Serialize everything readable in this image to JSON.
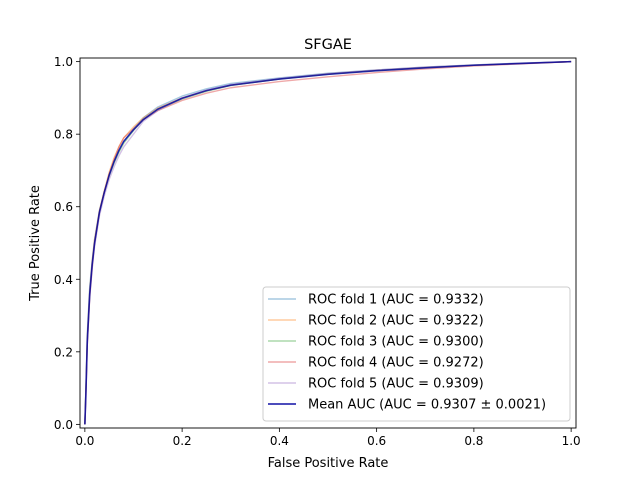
{
  "chart_data": {
    "type": "line",
    "title": "SFGAE",
    "xlabel": "False Positive Rate",
    "ylabel": "True Positive Rate",
    "xlim": [
      -0.01,
      1.01
    ],
    "ylim": [
      -0.01,
      1.01
    ],
    "xticks": [
      "0.0",
      "0.2",
      "0.4",
      "0.6",
      "0.8",
      "1.0"
    ],
    "yticks": [
      "0.0",
      "0.2",
      "0.4",
      "0.6",
      "0.8",
      "1.0"
    ],
    "grid": false,
    "legend_position": "lower-right",
    "series": [
      {
        "name": "ROC fold 1 (AUC = 0.9332)",
        "color": "#1f77b4",
        "opacity": 0.4,
        "x": [
          0,
          0.002,
          0.005,
          0.01,
          0.015,
          0.02,
          0.03,
          0.04,
          0.05,
          0.06,
          0.07,
          0.08,
          0.1,
          0.12,
          0.15,
          0.2,
          0.25,
          0.3,
          0.4,
          0.5,
          0.6,
          0.7,
          0.8,
          0.9,
          1.0
        ],
        "y": [
          0,
          0.1,
          0.25,
          0.38,
          0.45,
          0.51,
          0.59,
          0.64,
          0.69,
          0.725,
          0.755,
          0.78,
          0.815,
          0.845,
          0.875,
          0.905,
          0.925,
          0.94,
          0.955,
          0.968,
          0.977,
          0.985,
          0.991,
          0.996,
          1.0
        ]
      },
      {
        "name": "ROC fold 2 (AUC = 0.9322)",
        "color": "#ff7f0e",
        "opacity": 0.4,
        "x": [
          0,
          0.002,
          0.005,
          0.01,
          0.015,
          0.02,
          0.03,
          0.04,
          0.05,
          0.06,
          0.07,
          0.08,
          0.1,
          0.12,
          0.15,
          0.2,
          0.25,
          0.3,
          0.4,
          0.5,
          0.6,
          0.7,
          0.8,
          0.9,
          1.0
        ],
        "y": [
          0,
          0.09,
          0.24,
          0.37,
          0.45,
          0.51,
          0.59,
          0.645,
          0.695,
          0.735,
          0.765,
          0.79,
          0.82,
          0.845,
          0.872,
          0.9,
          0.92,
          0.935,
          0.952,
          0.966,
          0.976,
          0.984,
          0.99,
          0.995,
          1.0
        ]
      },
      {
        "name": "ROC fold 3 (AUC = 0.9300)",
        "color": "#2ca02c",
        "opacity": 0.4,
        "x": [
          0,
          0.002,
          0.005,
          0.01,
          0.015,
          0.02,
          0.03,
          0.04,
          0.05,
          0.06,
          0.07,
          0.08,
          0.1,
          0.12,
          0.15,
          0.2,
          0.25,
          0.3,
          0.4,
          0.5,
          0.6,
          0.7,
          0.8,
          0.9,
          1.0
        ],
        "y": [
          0,
          0.09,
          0.23,
          0.36,
          0.44,
          0.5,
          0.585,
          0.64,
          0.685,
          0.72,
          0.75,
          0.775,
          0.81,
          0.84,
          0.868,
          0.897,
          0.918,
          0.934,
          0.952,
          0.965,
          0.975,
          0.983,
          0.99,
          0.995,
          1.0
        ]
      },
      {
        "name": "ROC fold 4 (AUC = 0.9272)",
        "color": "#d62728",
        "opacity": 0.4,
        "x": [
          0,
          0.002,
          0.005,
          0.01,
          0.015,
          0.02,
          0.03,
          0.04,
          0.05,
          0.06,
          0.07,
          0.08,
          0.1,
          0.12,
          0.15,
          0.2,
          0.25,
          0.3,
          0.4,
          0.5,
          0.6,
          0.7,
          0.8,
          0.9,
          1.0
        ],
        "y": [
          0,
          0.08,
          0.22,
          0.35,
          0.43,
          0.5,
          0.585,
          0.64,
          0.69,
          0.73,
          0.765,
          0.79,
          0.815,
          0.84,
          0.865,
          0.893,
          0.913,
          0.928,
          0.945,
          0.958,
          0.97,
          0.98,
          0.988,
          0.994,
          1.0
        ]
      },
      {
        "name": "ROC fold 5 (AUC = 0.9309)",
        "color": "#9467bd",
        "opacity": 0.4,
        "x": [
          0,
          0.002,
          0.005,
          0.01,
          0.015,
          0.02,
          0.03,
          0.04,
          0.05,
          0.06,
          0.07,
          0.08,
          0.1,
          0.12,
          0.15,
          0.2,
          0.25,
          0.3,
          0.4,
          0.5,
          0.6,
          0.7,
          0.8,
          0.9,
          1.0
        ],
        "y": [
          0,
          0.07,
          0.22,
          0.35,
          0.43,
          0.49,
          0.575,
          0.63,
          0.675,
          0.71,
          0.74,
          0.765,
          0.8,
          0.835,
          0.865,
          0.9,
          0.922,
          0.937,
          0.954,
          0.967,
          0.977,
          0.985,
          0.991,
          0.996,
          1.0
        ]
      },
      {
        "name": "Mean AUC (AUC = 0.9307 ± 0.0021)",
        "color": "#0000a0",
        "opacity": 0.8,
        "x": [
          0,
          0.002,
          0.005,
          0.01,
          0.015,
          0.02,
          0.03,
          0.04,
          0.05,
          0.06,
          0.07,
          0.08,
          0.1,
          0.12,
          0.15,
          0.2,
          0.25,
          0.3,
          0.4,
          0.5,
          0.6,
          0.7,
          0.8,
          0.9,
          1.0
        ],
        "y": [
          0,
          0.08,
          0.23,
          0.36,
          0.44,
          0.5,
          0.585,
          0.64,
          0.687,
          0.724,
          0.755,
          0.78,
          0.812,
          0.84,
          0.869,
          0.899,
          0.92,
          0.935,
          0.952,
          0.965,
          0.975,
          0.983,
          0.99,
          0.995,
          1.0
        ]
      }
    ]
  }
}
